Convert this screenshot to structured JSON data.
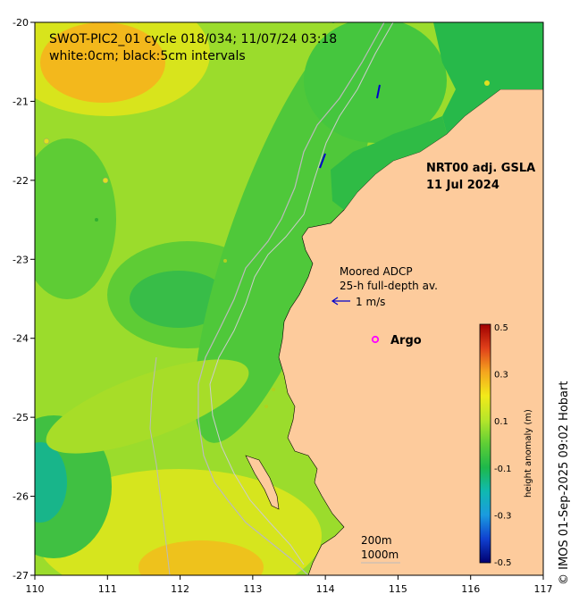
{
  "title": {
    "line1": "SWOT-PIC2_01 cycle 018/034; 11/07/24 03:18",
    "line2": "white:0cm; black:5cm intervals"
  },
  "product": {
    "line1": "NRT00 adj. GSLA",
    "line2": "11 Jul 2024"
  },
  "adcp": {
    "line1": "Moored ADCP",
    "line2": "25-h full-depth av.",
    "scale_label": "1 m/s"
  },
  "argo": {
    "label": "Argo",
    "color": "#ff00ff"
  },
  "isobaths": {
    "label_200": "200m",
    "label_1000": "1000m"
  },
  "credit": "© IMOS 01-Sep-2025 09:02 Hobart",
  "colorbar": {
    "title": "height anomaly (m)",
    "tick_labels": [
      "0.5",
      "0.3",
      "0.1",
      "-0.1",
      "-0.3",
      "-0.5"
    ]
  },
  "axes": {
    "x_ticks": [
      "110",
      "111",
      "112",
      "113",
      "114",
      "115",
      "116",
      "117"
    ],
    "y_ticks": [
      "-20",
      "-21",
      "-22",
      "-23",
      "-24",
      "-25",
      "-26",
      "-27"
    ]
  },
  "colors": {
    "land": "#fdcb9c",
    "ocean_base": "#8fd830",
    "high_anomaly": "#f5a51e",
    "low_anomaly": "#30b84a",
    "arrow": "#0000cc"
  },
  "chart_data": {
    "type": "heatmap",
    "title": "SWOT-PIC2_01 cycle 018/034; 11/07/24 03:18",
    "subtitle": "white:0cm; black:5cm intervals",
    "xlim": [
      110,
      117
    ],
    "ylim": [
      -27,
      -20
    ],
    "xlabel": "",
    "ylabel": "",
    "colorbar_label": "height anomaly (m)",
    "colorbar_range": [
      -0.5,
      0.5
    ],
    "argo_float": {
      "lon": 114.65,
      "lat": -24.0
    },
    "adcp_vector": {
      "lon": 113.85,
      "lat": -23.5,
      "speed": "1 m/s"
    }
  }
}
